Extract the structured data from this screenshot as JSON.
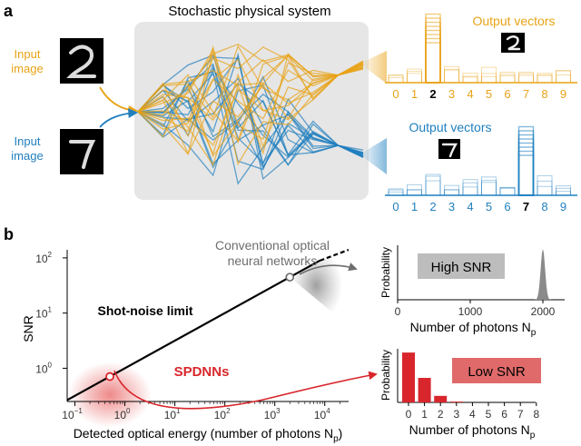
{
  "panel_a": {
    "label": "a",
    "system_title": "Stochastic physical system",
    "input_top": {
      "line1": "Input",
      "line2": "image",
      "digit": "2"
    },
    "input_bottom": {
      "line1": "Input",
      "line2": "image",
      "digit": "7"
    },
    "output_top": {
      "title": "Output vectors",
      "digit": "2",
      "tick_labels": [
        "0",
        "1",
        "2",
        "3",
        "4",
        "5",
        "6",
        "7",
        "8",
        "9"
      ],
      "predicted_index": 2
    },
    "output_bottom": {
      "title": "Output vectors",
      "digit": "7",
      "tick_labels": [
        "0",
        "1",
        "2",
        "3",
        "4",
        "5",
        "6",
        "7",
        "8",
        "9"
      ],
      "predicted_index": 7
    }
  },
  "panel_b": {
    "label": "b",
    "chart_data": [
      {
        "type": "line",
        "xscale": "log",
        "yscale": "log",
        "xlim": [
          0.07,
          30000
        ],
        "ylim": [
          0.25,
          140
        ],
        "x_ticks": [
          "10",
          "10",
          "10",
          "10",
          "10",
          "10"
        ],
        "x_tick_exponents": [
          "−1",
          "0",
          "1",
          "2",
          "3",
          "4"
        ],
        "y_ticks": [
          "10",
          "10",
          "10"
        ],
        "y_tick_exponents": [
          "0",
          "1",
          "2"
        ],
        "xlabel": "Detected optical energy (number of photons N",
        "xlabel_sub": "p",
        "xlabel_end": ")",
        "ylabel": "SNR",
        "series": [
          {
            "name": "Shot-noise limit",
            "x": [
              0.07,
              30000
            ],
            "y": [
              0.265,
              173
            ]
          }
        ],
        "annotations": {
          "conventional": {
            "line1": "Conventional optical",
            "line2": "neural networks",
            "x": 2000,
            "y": 44.7
          },
          "spdnn": {
            "text": "SPDNNs",
            "x": 0.5,
            "y": 0.707
          },
          "shot_noise_label": "Shot-noise limit"
        }
      },
      {
        "type": "area",
        "ylabel": "Probability",
        "xlabel": "Number of photons N",
        "xlabel_sub": "p",
        "xlim": [
          0,
          2300
        ],
        "x_ticks": [
          "0",
          "1000",
          "2000"
        ],
        "x_tick_values": [
          0,
          1000,
          2000
        ],
        "peak_x": 2000,
        "badge": "High SNR"
      },
      {
        "type": "bar",
        "ylabel": "Probability",
        "xlabel": "Number of photons N",
        "xlabel_sub": "p",
        "categories": [
          "0",
          "1",
          "2",
          "3",
          "4",
          "5",
          "6",
          "7",
          "8"
        ],
        "values": [
          0.61,
          0.3,
          0.08,
          0.01,
          0,
          0,
          0,
          0,
          0
        ],
        "badge": "Low SNR"
      }
    ]
  },
  "colors": {
    "orange": "#E8A317",
    "blue": "#1F7FBF",
    "red": "#D8262C",
    "gray_box": "#E6E6E6",
    "badge_gray": "#BDBDBD",
    "badge_red": "#E06A6A"
  }
}
